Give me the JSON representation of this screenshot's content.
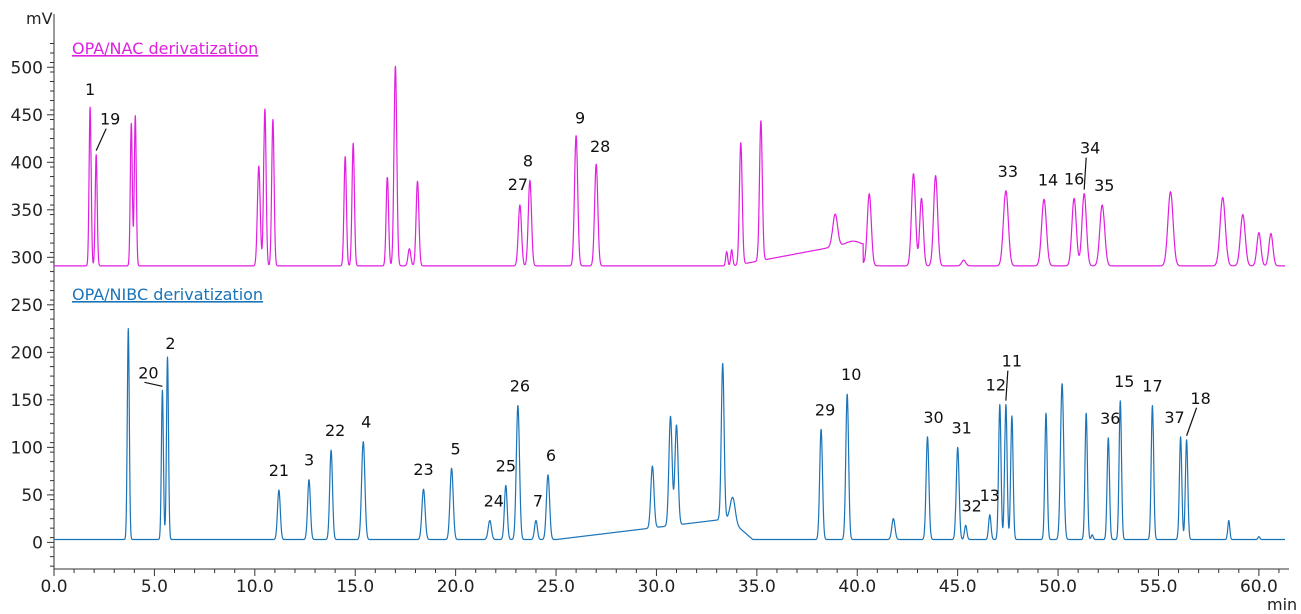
{
  "chart_data": {
    "type": "line",
    "x_unit": "min",
    "y_unit": "mV",
    "xlim": [
      0,
      61.5
    ],
    "ylim": [
      -28,
      535
    ],
    "x_ticks": [
      0,
      5,
      10,
      15,
      20,
      25,
      30,
      35,
      40,
      45,
      50,
      55,
      60
    ],
    "x_tick_labels": [
      "0.0",
      "5.0",
      "10.0",
      "15.0",
      "20.0",
      "25.0",
      "30.0",
      "35.0",
      "40.0",
      "45.0",
      "50.0",
      "55.0",
      "60.0"
    ],
    "y_ticks": [
      0,
      50,
      100,
      150,
      200,
      250,
      300,
      350,
      400,
      450,
      500
    ],
    "y_tick_labels": [
      "0",
      "50",
      "100",
      "150",
      "200",
      "250",
      "300",
      "350",
      "400",
      "450",
      "500"
    ],
    "grid": false,
    "series": [
      {
        "name": "OPA/NAC derivatization",
        "color": "#e01fe0",
        "baseline": 291,
        "peaks": [
          [
            1.8,
            167,
            0.05
          ],
          [
            2.1,
            117,
            0.05
          ],
          [
            3.85,
            150,
            0.05
          ],
          [
            4.05,
            158,
            0.05
          ],
          [
            10.2,
            105,
            0.07
          ],
          [
            10.5,
            165,
            0.06
          ],
          [
            10.9,
            154,
            0.06
          ],
          [
            14.5,
            115,
            0.06
          ],
          [
            14.9,
            129,
            0.06
          ],
          [
            16.6,
            93,
            0.06
          ],
          [
            17.0,
            210,
            0.07
          ],
          [
            17.7,
            18,
            0.07
          ],
          [
            18.1,
            89,
            0.07
          ],
          [
            23.2,
            64,
            0.08
          ],
          [
            23.7,
            90,
            0.08
          ],
          [
            26.0,
            137,
            0.08
          ],
          [
            27.0,
            107,
            0.08
          ],
          [
            33.5,
            15,
            0.05
          ],
          [
            33.75,
            17,
            0.05
          ],
          [
            34.2,
            128,
            0.07
          ],
          [
            35.2,
            147,
            0.07
          ],
          [
            38.9,
            34,
            0.12
          ],
          [
            39.8,
            6,
            0.4
          ],
          [
            40.6,
            75,
            0.1
          ],
          [
            42.8,
            97,
            0.1
          ],
          [
            43.2,
            71,
            0.09
          ],
          [
            43.9,
            95,
            0.1
          ],
          [
            45.3,
            6,
            0.1
          ],
          [
            47.4,
            79,
            0.12
          ],
          [
            49.3,
            70,
            0.12
          ],
          [
            50.8,
            71,
            0.11
          ],
          [
            51.3,
            76,
            0.11
          ],
          [
            52.2,
            64,
            0.12
          ],
          [
            55.6,
            78,
            0.13
          ],
          [
            58.2,
            72,
            0.13
          ],
          [
            59.2,
            54,
            0.12
          ],
          [
            60.0,
            35,
            0.1
          ],
          [
            60.6,
            34,
            0.1
          ]
        ],
        "ramps": [
          [
            33.8,
            38.8,
            0,
            20
          ],
          [
            38.8,
            40.3,
            20,
            20
          ]
        ]
      },
      {
        "name": "OPA/NIBC derivatization",
        "color": "#1b74b8",
        "baseline": 3,
        "peaks": [
          [
            3.7,
            222,
            0.05
          ],
          [
            5.4,
            157,
            0.05
          ],
          [
            5.65,
            192,
            0.05
          ],
          [
            11.2,
            52,
            0.07
          ],
          [
            12.7,
            63,
            0.07
          ],
          [
            13.8,
            94,
            0.07
          ],
          [
            15.4,
            103,
            0.08
          ],
          [
            18.4,
            53,
            0.08
          ],
          [
            19.8,
            75,
            0.08
          ],
          [
            21.7,
            20,
            0.08
          ],
          [
            22.5,
            57,
            0.07
          ],
          [
            23.1,
            141,
            0.08
          ],
          [
            24.0,
            20,
            0.07
          ],
          [
            24.6,
            68,
            0.08
          ],
          [
            29.8,
            65,
            0.08
          ],
          [
            30.7,
            115,
            0.08
          ],
          [
            31.0,
            105,
            0.08
          ],
          [
            33.3,
            164,
            0.07
          ],
          [
            33.8,
            26,
            0.12
          ],
          [
            38.2,
            116,
            0.07
          ],
          [
            39.5,
            153,
            0.07
          ],
          [
            41.8,
            22,
            0.08
          ],
          [
            43.5,
            108,
            0.07
          ],
          [
            45.0,
            97,
            0.07
          ],
          [
            45.4,
            15,
            0.06
          ],
          [
            46.6,
            26,
            0.06
          ],
          [
            47.1,
            142,
            0.06
          ],
          [
            47.4,
            142,
            0.06
          ],
          [
            47.7,
            130,
            0.06
          ],
          [
            49.4,
            133,
            0.06
          ],
          [
            50.2,
            164,
            0.08
          ],
          [
            51.4,
            133,
            0.06
          ],
          [
            51.7,
            5,
            0.05
          ],
          [
            52.5,
            107,
            0.06
          ],
          [
            53.1,
            146,
            0.06
          ],
          [
            54.7,
            141,
            0.06
          ],
          [
            56.1,
            108,
            0.06
          ],
          [
            56.4,
            105,
            0.06
          ],
          [
            58.5,
            20,
            0.05
          ],
          [
            60.0,
            3,
            0.05
          ]
        ],
        "ramps": [
          [
            25.0,
            33.6,
            0,
            22
          ],
          [
            33.6,
            34.8,
            22,
            0
          ]
        ]
      }
    ],
    "peak_labels": [
      {
        "text": "1",
        "x": 1.8,
        "y": 458,
        "series": 0
      },
      {
        "text": "19",
        "x": 2.1,
        "y": 408,
        "series": 0,
        "leader": true
      },
      {
        "text": "27",
        "x": 23.2,
        "y": 356,
        "series": 0
      },
      {
        "text": "8",
        "x": 23.7,
        "y": 381,
        "series": 0
      },
      {
        "text": "9",
        "x": 26.0,
        "y": 428,
        "series": 0
      },
      {
        "text": "28",
        "x": 27.0,
        "y": 398,
        "series": 0
      },
      {
        "text": "33",
        "x": 47.4,
        "y": 370,
        "series": 0
      },
      {
        "text": "14",
        "x": 49.3,
        "y": 361,
        "series": 0
      },
      {
        "text": "16",
        "x": 50.8,
        "y": 362,
        "series": 0
      },
      {
        "text": "34",
        "x": 51.3,
        "y": 367,
        "series": 0,
        "leader": true
      },
      {
        "text": "35",
        "x": 52.2,
        "y": 355,
        "series": 0
      },
      {
        "text": "20",
        "x": 5.4,
        "y": 160,
        "series": 1,
        "leader": true
      },
      {
        "text": "2",
        "x": 5.65,
        "y": 195,
        "series": 1
      },
      {
        "text": "21",
        "x": 11.2,
        "y": 55,
        "series": 1
      },
      {
        "text": "3",
        "x": 12.7,
        "y": 66,
        "series": 1
      },
      {
        "text": "22",
        "x": 13.8,
        "y": 97,
        "series": 1
      },
      {
        "text": "4",
        "x": 15.4,
        "y": 106,
        "series": 1
      },
      {
        "text": "23",
        "x": 18.4,
        "y": 56,
        "series": 1
      },
      {
        "text": "5",
        "x": 19.8,
        "y": 78,
        "series": 1
      },
      {
        "text": "24",
        "x": 21.7,
        "y": 23,
        "series": 1
      },
      {
        "text": "25",
        "x": 22.5,
        "y": 60,
        "series": 1
      },
      {
        "text": "26",
        "x": 23.1,
        "y": 144,
        "series": 1
      },
      {
        "text": "7",
        "x": 24.0,
        "y": 23,
        "series": 1
      },
      {
        "text": "6",
        "x": 24.6,
        "y": 71,
        "series": 1
      },
      {
        "text": "29",
        "x": 38.2,
        "y": 119,
        "series": 1
      },
      {
        "text": "10",
        "x": 39.5,
        "y": 156,
        "series": 1
      },
      {
        "text": "30",
        "x": 43.5,
        "y": 111,
        "series": 1
      },
      {
        "text": "31",
        "x": 45.0,
        "y": 100,
        "series": 1
      },
      {
        "text": "32",
        "x": 45.4,
        "y": 18,
        "series": 1
      },
      {
        "text": "13",
        "x": 46.6,
        "y": 29,
        "series": 1
      },
      {
        "text": "12",
        "x": 47.1,
        "y": 145,
        "series": 1
      },
      {
        "text": "11",
        "x": 47.4,
        "y": 145,
        "series": 1,
        "leader": true
      },
      {
        "text": "36",
        "x": 52.5,
        "y": 110,
        "series": 1
      },
      {
        "text": "15",
        "x": 53.1,
        "y": 149,
        "series": 1
      },
      {
        "text": "17",
        "x": 54.7,
        "y": 144,
        "series": 1
      },
      {
        "text": "37",
        "x": 56.1,
        "y": 111,
        "series": 1
      },
      {
        "text": "18",
        "x": 56.4,
        "y": 108,
        "series": 1,
        "leader": true
      }
    ]
  }
}
